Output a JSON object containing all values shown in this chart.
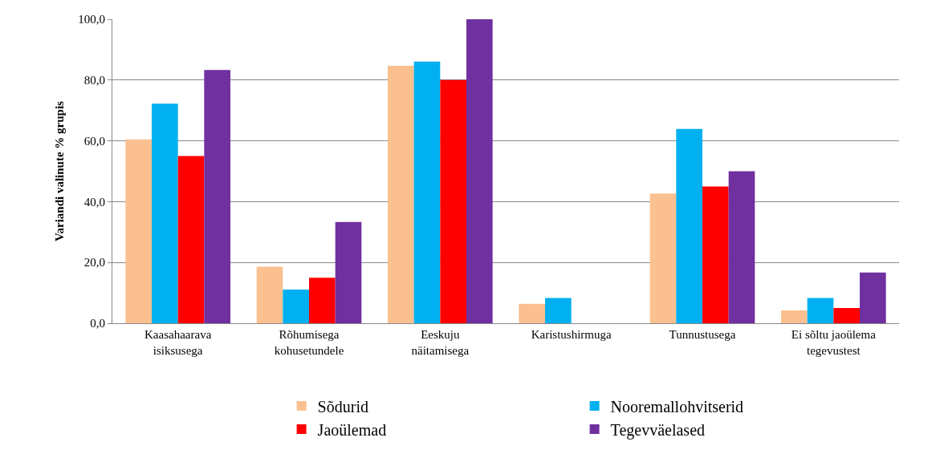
{
  "chart_data": {
    "type": "bar",
    "ylabel": "Variandi valinute % grupis",
    "categories": [
      "Kaasahaarava\nisiksusega",
      "Rõhumisega\nkohusetundele",
      "Eeskuju\nnäitamisega",
      "Karistushirmuga",
      "Tunnustusega",
      "Ei sõltu jaoülema\ntegevustest"
    ],
    "series": [
      {
        "name": "Sõdurid",
        "color": "#fac090",
        "values": [
          60.5,
          18.6,
          84.7,
          6.4,
          42.7,
          4.2
        ]
      },
      {
        "name": "Nooremallohvitserid",
        "color": "#00b0f0",
        "values": [
          72.2,
          11.1,
          86.1,
          8.3,
          63.9,
          8.3
        ]
      },
      {
        "name": "Jaoülemad",
        "color": "#ff0000",
        "values": [
          55,
          15,
          80,
          0,
          45,
          5
        ]
      },
      {
        "name": "Tegevväelased",
        "color": "#7030a0",
        "values": [
          83.3,
          33.3,
          100,
          0,
          50,
          16.7
        ]
      }
    ],
    "ylim": [
      0,
      100
    ],
    "yticks": [
      {
        "value": 0,
        "label": "0,0"
      },
      {
        "value": 20,
        "label": "20,0"
      },
      {
        "value": 40,
        "label": "40,0"
      },
      {
        "value": 60,
        "label": "60,0"
      },
      {
        "value": 80,
        "label": "80,0"
      },
      {
        "value": 100,
        "label": "100,0"
      }
    ],
    "grid": "y",
    "legend": "bottom"
  }
}
